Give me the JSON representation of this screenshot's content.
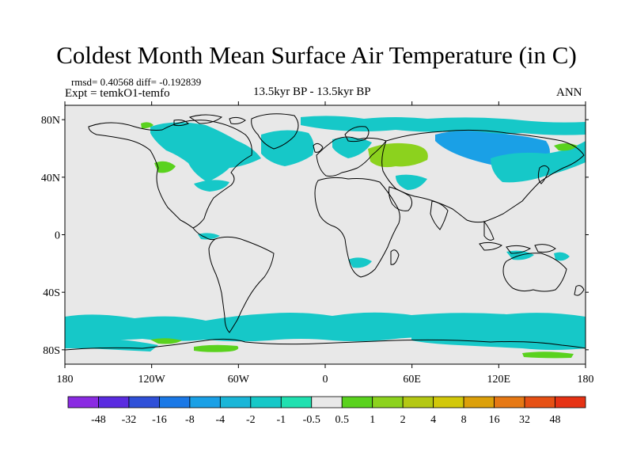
{
  "title": "Coldest Month Mean Surface Air Temperature (in C)",
  "stats": "rmsd= 0.40568 diff= -0.192839",
  "expt": "Expt = temkO1-temfo",
  "subtitle": "13.5kyr BP - 13.5kyr BP",
  "season": "ANN",
  "lat_ticks": [
    {
      "value": 80,
      "label": "80N"
    },
    {
      "value": 40,
      "label": "40N"
    },
    {
      "value": 0,
      "label": "0"
    },
    {
      "value": -40,
      "label": "40S"
    },
    {
      "value": -80,
      "label": "80S"
    }
  ],
  "lon_ticks": [
    {
      "value": -180,
      "label": "180"
    },
    {
      "value": -120,
      "label": "120W"
    },
    {
      "value": -60,
      "label": "60W"
    },
    {
      "value": 0,
      "label": "0"
    },
    {
      "value": 60,
      "label": "60E"
    },
    {
      "value": 120,
      "label": "120E"
    },
    {
      "value": 180,
      "label": "180"
    }
  ],
  "colorbar": {
    "colors": [
      "#8a2be2",
      "#5a2be0",
      "#2f50d8",
      "#1a78e6",
      "#1aa0e6",
      "#1ab6d8",
      "#16c8c8",
      "#20e0b0",
      "#e8e8e8",
      "#5ad21e",
      "#8cd21e",
      "#b4c814",
      "#d2c80a",
      "#dca00a",
      "#e67814",
      "#e65014",
      "#e63214"
    ],
    "labels": [
      "-48",
      "-32",
      "-16",
      "-8",
      "-4",
      "-2",
      "-1",
      "-0.5",
      "0.5",
      "1",
      "2",
      "4",
      "8",
      "16",
      "32",
      "48"
    ]
  },
  "colors": {
    "background": "#e8e8e8",
    "land_outline": "#000000",
    "anomaly_cyan": "#16c8c8",
    "anomaly_blue": "#1aa0e6",
    "anomaly_light_green": "#5ad21e",
    "anomaly_yellow_green": "#8cd21e"
  }
}
